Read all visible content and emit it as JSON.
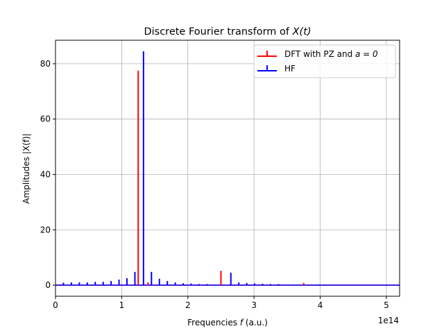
{
  "chart_data": {
    "type": "stem",
    "title": "Discrete Fourier transform of X(t)",
    "title_prefix": "Discrete Fourier transform of ",
    "title_math": "X(t)",
    "xlabel_prefix": "Frequencies ",
    "xlabel_math": "f",
    "xlabel_suffix": " (a.u.)",
    "ylabel": "Amplitudes |X(f)|",
    "xlim": [
      0,
      5.2
    ],
    "ylim": [
      -4,
      88.5
    ],
    "x_offset_label": "1e14",
    "xticks": [
      0,
      1,
      2,
      3,
      4,
      5
    ],
    "xtick_labels": [
      "0",
      "1",
      "2",
      "3",
      "4",
      "5"
    ],
    "yticks": [
      0,
      20,
      40,
      60,
      80
    ],
    "ytick_labels": [
      "0",
      "20",
      "40",
      "60",
      "80"
    ],
    "grid": true,
    "legend_placement": "top-right",
    "series": [
      {
        "name": "DFT with PZ and a = 0",
        "legend_prefix": "DFT with PZ and ",
        "legend_math": "a = 0",
        "color": "#ff0000",
        "x": [
          1.25,
          1.4,
          2.5,
          3.75
        ],
        "y": [
          77.5,
          1.0,
          5.2,
          0.8
        ]
      },
      {
        "name": "HF",
        "legend_prefix": "HF",
        "legend_math": "",
        "color": "#0000ff",
        "x": [
          0.12,
          0.24,
          0.36,
          0.48,
          0.6,
          0.72,
          0.84,
          0.96,
          1.08,
          1.2,
          1.33,
          1.45,
          1.57,
          1.69,
          1.81,
          1.93,
          2.05,
          2.17,
          2.29,
          2.65,
          2.77,
          2.89,
          3.01,
          3.13,
          3.25,
          3.37,
          3.98
        ],
        "y": [
          0.9,
          1.0,
          1.0,
          1.0,
          1.2,
          1.2,
          1.5,
          2.0,
          2.5,
          4.8,
          84.5,
          4.8,
          2.3,
          1.5,
          1.0,
          0.7,
          0.6,
          0.4,
          0.4,
          4.5,
          1.0,
          0.8,
          0.6,
          0.5,
          0.4,
          0.4,
          0.3
        ]
      }
    ]
  }
}
